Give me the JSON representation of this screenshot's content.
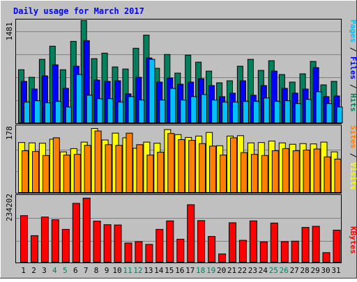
{
  "title": "Daily usage for March 2017",
  "colors": {
    "background": "#C0C0C0",
    "title": "#0000FF",
    "grid": "#808080",
    "hits": "#00805C",
    "files": "#0000FF",
    "pages": "#00C0FF",
    "visits": "#FFFF00",
    "sites": "#FF8000",
    "kbytes": "#FF0000",
    "weekend": "#00805C",
    "weekday": "#000000"
  },
  "right_labels": {
    "top": {
      "pages": "Pages",
      "files": "Files",
      "hits": "Hits",
      "sep": " / "
    },
    "middle": {
      "sites": "Sites",
      "visits": "Visits",
      "sep": " / "
    },
    "bottom": {
      "kbytes": "KBytes"
    }
  },
  "chart_data": [
    {
      "type": "bar",
      "panel": "hits-files-pages",
      "y_tick_label": "1481",
      "ylim": [
        0,
        1481
      ],
      "categories": [
        "1",
        "2",
        "3",
        "4",
        "5",
        "6",
        "7",
        "8",
        "9",
        "10",
        "11",
        "12",
        "13",
        "14",
        "15",
        "16",
        "17",
        "18",
        "19",
        "20",
        "21",
        "22",
        "23",
        "24",
        "25",
        "26",
        "27",
        "28",
        "29",
        "30",
        "31"
      ],
      "weekend_days": [
        "4",
        "5",
        "11",
        "12",
        "18",
        "19",
        "25",
        "26"
      ],
      "series": [
        {
          "name": "Hits",
          "values": [
            770,
            660,
            920,
            1110,
            770,
            1180,
            1481,
            930,
            1010,
            810,
            780,
            1080,
            1270,
            790,
            990,
            720,
            980,
            880,
            750,
            580,
            610,
            820,
            920,
            760,
            900,
            700,
            590,
            710,
            890,
            550,
            600
          ]
        },
        {
          "name": "Files",
          "values": [
            600,
            490,
            680,
            840,
            500,
            820,
            1190,
            620,
            600,
            610,
            420,
            660,
            940,
            590,
            650,
            560,
            590,
            640,
            540,
            380,
            430,
            610,
            400,
            540,
            750,
            500,
            430,
            490,
            800,
            380,
            390
          ]
        },
        {
          "name": "Pages",
          "values": [
            300,
            320,
            290,
            310,
            230,
            700,
            400,
            350,
            350,
            300,
            380,
            330,
            920,
            330,
            500,
            330,
            380,
            410,
            330,
            300,
            300,
            310,
            310,
            360,
            310,
            320,
            280,
            340,
            450,
            280,
            230
          ]
        }
      ]
    },
    {
      "type": "bar",
      "panel": "visits-sites",
      "y_tick_label": "178",
      "ylim": [
        0,
        178
      ],
      "categories": [
        "1",
        "2",
        "3",
        "4",
        "5",
        "6",
        "7",
        "8",
        "9",
        "10",
        "11",
        "12",
        "13",
        "14",
        "15",
        "16",
        "17",
        "18",
        "19",
        "20",
        "21",
        "22",
        "23",
        "24",
        "25",
        "26",
        "27",
        "28",
        "29",
        "30",
        "31"
      ],
      "series": [
        {
          "name": "Visits",
          "values": [
            139,
            138,
            137,
            148,
            113,
            122,
            140,
            178,
            146,
            165,
            152,
            123,
            140,
            137,
            175,
            161,
            153,
            157,
            167,
            130,
            157,
            158,
            138,
            139,
            143,
            138,
            134,
            136,
            135,
            140,
            113
          ]
        },
        {
          "name": "Sites",
          "values": [
            116,
            114,
            103,
            152,
            104,
            106,
            131,
            171,
            133,
            131,
            165,
            133,
            104,
            112,
            164,
            147,
            145,
            136,
            129,
            104,
            152,
            111,
            106,
            103,
            116,
            122,
            116,
            118,
            121,
            99,
            93
          ]
        }
      ]
    },
    {
      "type": "bar",
      "panel": "kbytes",
      "y_tick_label": "234202",
      "ylim": [
        0,
        234202
      ],
      "categories": [
        "1",
        "2",
        "3",
        "4",
        "5",
        "6",
        "7",
        "8",
        "9",
        "10",
        "11",
        "12",
        "13",
        "14",
        "15",
        "16",
        "17",
        "18",
        "19",
        "20",
        "21",
        "22",
        "23",
        "24",
        "25",
        "26",
        "27",
        "28",
        "29",
        "30",
        "31"
      ],
      "series": [
        {
          "name": "KBytes",
          "values": [
            170000,
            97000,
            165000,
            155000,
            120000,
            215000,
            234202,
            150000,
            137000,
            136000,
            70000,
            75000,
            65000,
            120000,
            151000,
            84000,
            210000,
            152000,
            94000,
            30000,
            144000,
            80000,
            151000,
            74000,
            143000,
            75000,
            77000,
            127000,
            131000,
            35000,
            117000
          ]
        }
      ]
    }
  ]
}
